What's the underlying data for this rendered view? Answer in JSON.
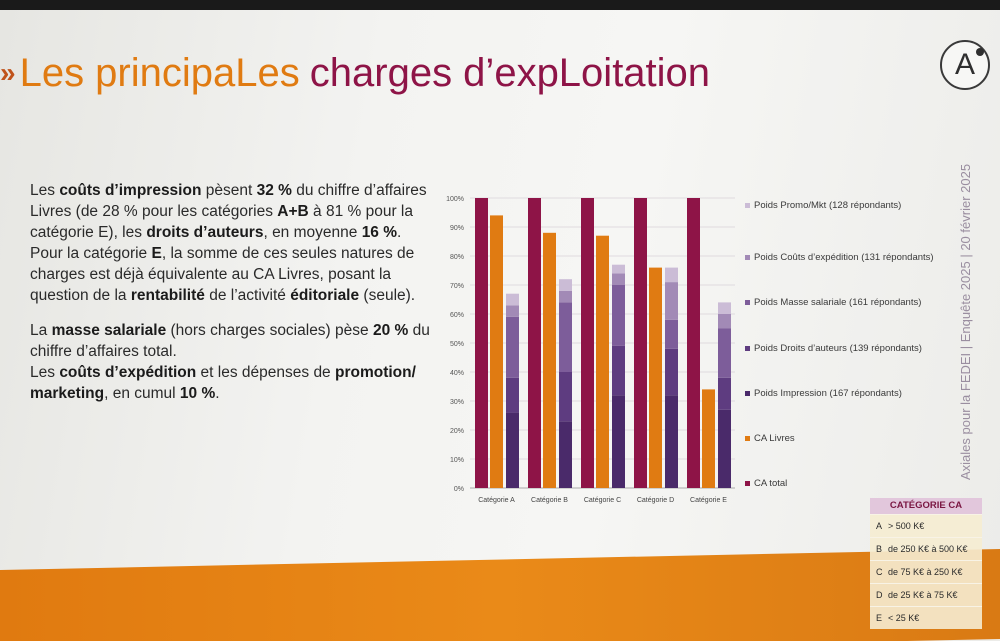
{
  "slide": {
    "title_prefix": "Les principaLes",
    "title_rest": "charges d’expLoitation",
    "arrows": "»",
    "logo_letter": "A",
    "side_text": "Axiales pour la FEDEI | Enquête 2025 | 20 février 2025"
  },
  "body": {
    "p1": [
      "Les ",
      {
        "b": "coûts d’impression"
      },
      " pèsent ",
      {
        "b": "32 %"
      },
      " du chiffre d’affaires Livres (de 28 % pour les catégories ",
      {
        "b": "A+B"
      },
      " à 81 % pour la catégorie E), les ",
      {
        "b": "droits d’auteurs"
      },
      ", en moyenne ",
      {
        "b": "16 %"
      },
      "."
    ],
    "p2": [
      "Pour la catégorie ",
      {
        "b": "E"
      },
      ", la somme de ces seules natures de charges est déjà équivalente au CA Livres, posant la question de la ",
      {
        "b": "rentabilité"
      },
      " de l’activité ",
      {
        "b": "éditoriale"
      },
      " (seule)."
    ],
    "p3": [
      "La ",
      {
        "b": "masse salariale"
      },
      " (hors charges sociales) pèse ",
      {
        "b": "20 %"
      },
      " du chiffre d’affaires total."
    ],
    "p4": [
      "Les ",
      {
        "b": "coûts d’expédition"
      },
      " et les dépenses de ",
      {
        "b": "promotion/ marketing"
      },
      ", en cumul ",
      {
        "b": "10 %"
      },
      "."
    ]
  },
  "chart_data": {
    "type": "bar",
    "categories": [
      "Catégorie A",
      "Catégorie B",
      "Catégorie C",
      "Catégorie D",
      "Catégorie E"
    ],
    "ylim": [
      0,
      100
    ],
    "yticks": [
      "0%",
      "10%",
      "20%",
      "30%",
      "40%",
      "50%",
      "60%",
      "70%",
      "80%",
      "90%",
      "100%"
    ],
    "grid": true,
    "legend_position": "right",
    "series": [
      {
        "name": "CA total",
        "color": "#8e1447",
        "values": [
          100,
          100,
          100,
          100,
          100
        ]
      },
      {
        "name": "CA Livres",
        "color": "#e07b12",
        "values": [
          94,
          88,
          87,
          76,
          34
        ]
      },
      {
        "name": "Poids Impression (167 répondants)",
        "color": "#4a2a6a",
        "values": [
          26,
          23,
          32,
          32,
          27
        ]
      },
      {
        "name": "Poids Droits d’auteurs (139 répondants)",
        "color": "#5e3c80",
        "values": [
          38,
          40,
          49,
          48,
          38
        ]
      },
      {
        "name": "Poids Masse salariale (161 répondants)",
        "color": "#7d5d9a",
        "values": [
          59,
          64,
          70,
          58,
          55
        ]
      },
      {
        "name": "Poids Coûts d’expédition (131 répondants)",
        "color": "#a28ab6",
        "values": [
          63,
          68,
          74,
          71,
          60
        ]
      },
      {
        "name": "Poids Promo/Mkt (128 répondants)",
        "color": "#cbbcd6",
        "values": [
          67,
          72,
          77,
          76,
          64
        ]
      }
    ],
    "legend_order": [
      6,
      5,
      4,
      3,
      2,
      1,
      0
    ]
  },
  "category_table": {
    "header": "CATÉGORIE CA",
    "rows": [
      {
        "key": "A",
        "label": "> 500 K€"
      },
      {
        "key": "B",
        "label": "de 250 K€ à 500 K€"
      },
      {
        "key": "C",
        "label": "de 75 K€ à 250 K€"
      },
      {
        "key": "D",
        "label": "de 25 K€ à 75 K€"
      },
      {
        "key": "E",
        "label": "< 25 K€"
      }
    ]
  }
}
